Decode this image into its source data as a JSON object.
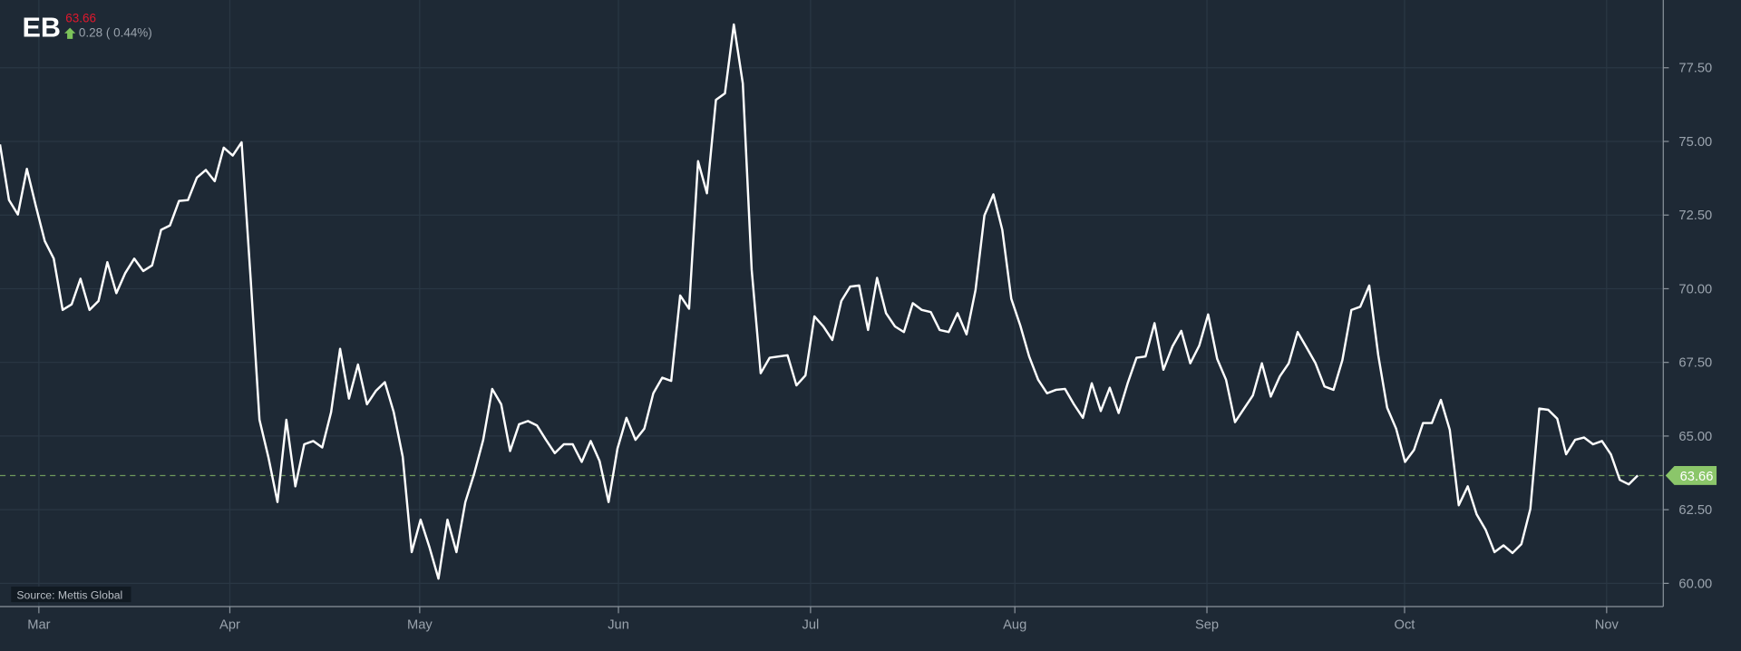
{
  "header": {
    "symbol": "EB",
    "last_price": "63.66",
    "change": "0.28 ( 0.44%)",
    "change_direction_icon": "arrow-up-icon"
  },
  "source_label": "Source: Mettis Global",
  "colors": {
    "background": "#1e2935",
    "line": "#ffffff",
    "price_down_text": "#e0182d",
    "up_green": "#7cc35a",
    "last_price_tag": "#8bc66a"
  },
  "chart_data": {
    "type": "line",
    "title": "",
    "xlabel": "",
    "ylabel": "",
    "x_ticks": [
      "Mar",
      "Apr",
      "May",
      "Jun",
      "Jul",
      "Aug",
      "Sep",
      "Oct",
      "Nov"
    ],
    "y_ticks": [
      "60.00",
      "62.50",
      "65.00",
      "67.50",
      "70.00",
      "72.50",
      "75.00",
      "77.50"
    ],
    "ylim": [
      59.2,
      79.8
    ],
    "grid": true,
    "y_axis_side": "right",
    "last_value_label": "63.66",
    "last_value_line": 63.66,
    "series": [
      {
        "values": [
          74.9,
          73.01,
          72.52,
          74.07,
          72.82,
          71.62,
          71.02,
          69.28,
          69.47,
          70.34,
          69.28,
          69.58,
          70.9,
          69.85,
          70.53,
          71.02,
          70.6,
          70.79,
          72.0,
          72.15,
          72.98,
          73.01,
          73.77,
          74.03,
          73.65,
          74.79,
          74.52,
          74.97,
          70.37,
          65.55,
          64.27,
          62.76,
          65.55,
          63.29,
          64.72,
          64.83,
          64.61,
          65.81,
          67.96,
          66.27,
          67.43,
          66.08,
          66.53,
          66.83,
          65.81,
          64.3,
          61.06,
          62.16,
          61.21,
          60.16,
          62.16,
          61.06,
          62.76,
          63.74,
          64.87,
          66.6,
          66.08,
          64.49,
          65.4,
          65.51,
          65.36,
          64.87,
          64.42,
          64.72,
          64.72,
          64.12,
          64.83,
          64.15,
          62.76,
          64.57,
          65.62,
          64.87,
          65.25,
          66.45,
          66.98,
          66.87,
          69.77,
          69.32,
          74.33,
          73.24,
          76.41,
          76.63,
          78.97,
          76.97,
          70.64,
          67.13,
          67.66,
          67.7,
          67.74,
          66.72,
          67.06,
          69.06,
          68.72,
          68.26,
          69.58,
          70.07,
          70.11,
          68.6,
          70.37,
          69.17,
          68.72,
          68.53,
          69.51,
          69.28,
          69.21,
          68.6,
          68.53,
          69.17,
          68.45,
          69.96,
          72.49,
          73.2,
          72.0,
          69.66,
          68.75,
          67.7,
          66.91,
          66.45,
          66.57,
          66.6,
          66.08,
          65.62,
          66.79,
          65.85,
          66.64,
          65.78,
          66.79,
          67.66,
          67.7,
          68.83,
          67.25,
          68.04,
          68.57,
          67.47,
          68.07,
          69.13,
          67.62,
          66.91,
          65.47,
          65.93,
          66.38,
          67.47,
          66.34,
          67.02,
          67.47,
          68.53,
          68.0,
          67.47,
          66.68,
          66.57,
          67.58,
          69.28,
          69.39,
          70.11,
          67.74,
          65.96,
          65.25,
          64.12,
          64.53,
          65.44,
          65.44,
          66.23,
          65.21,
          62.65,
          63.29,
          62.34,
          61.82,
          61.06,
          61.29,
          61.03,
          61.33,
          62.53,
          65.93,
          65.89,
          65.59,
          64.38,
          64.87,
          64.95,
          64.72,
          64.83,
          64.38,
          63.51,
          63.36,
          63.66
        ]
      }
    ]
  }
}
